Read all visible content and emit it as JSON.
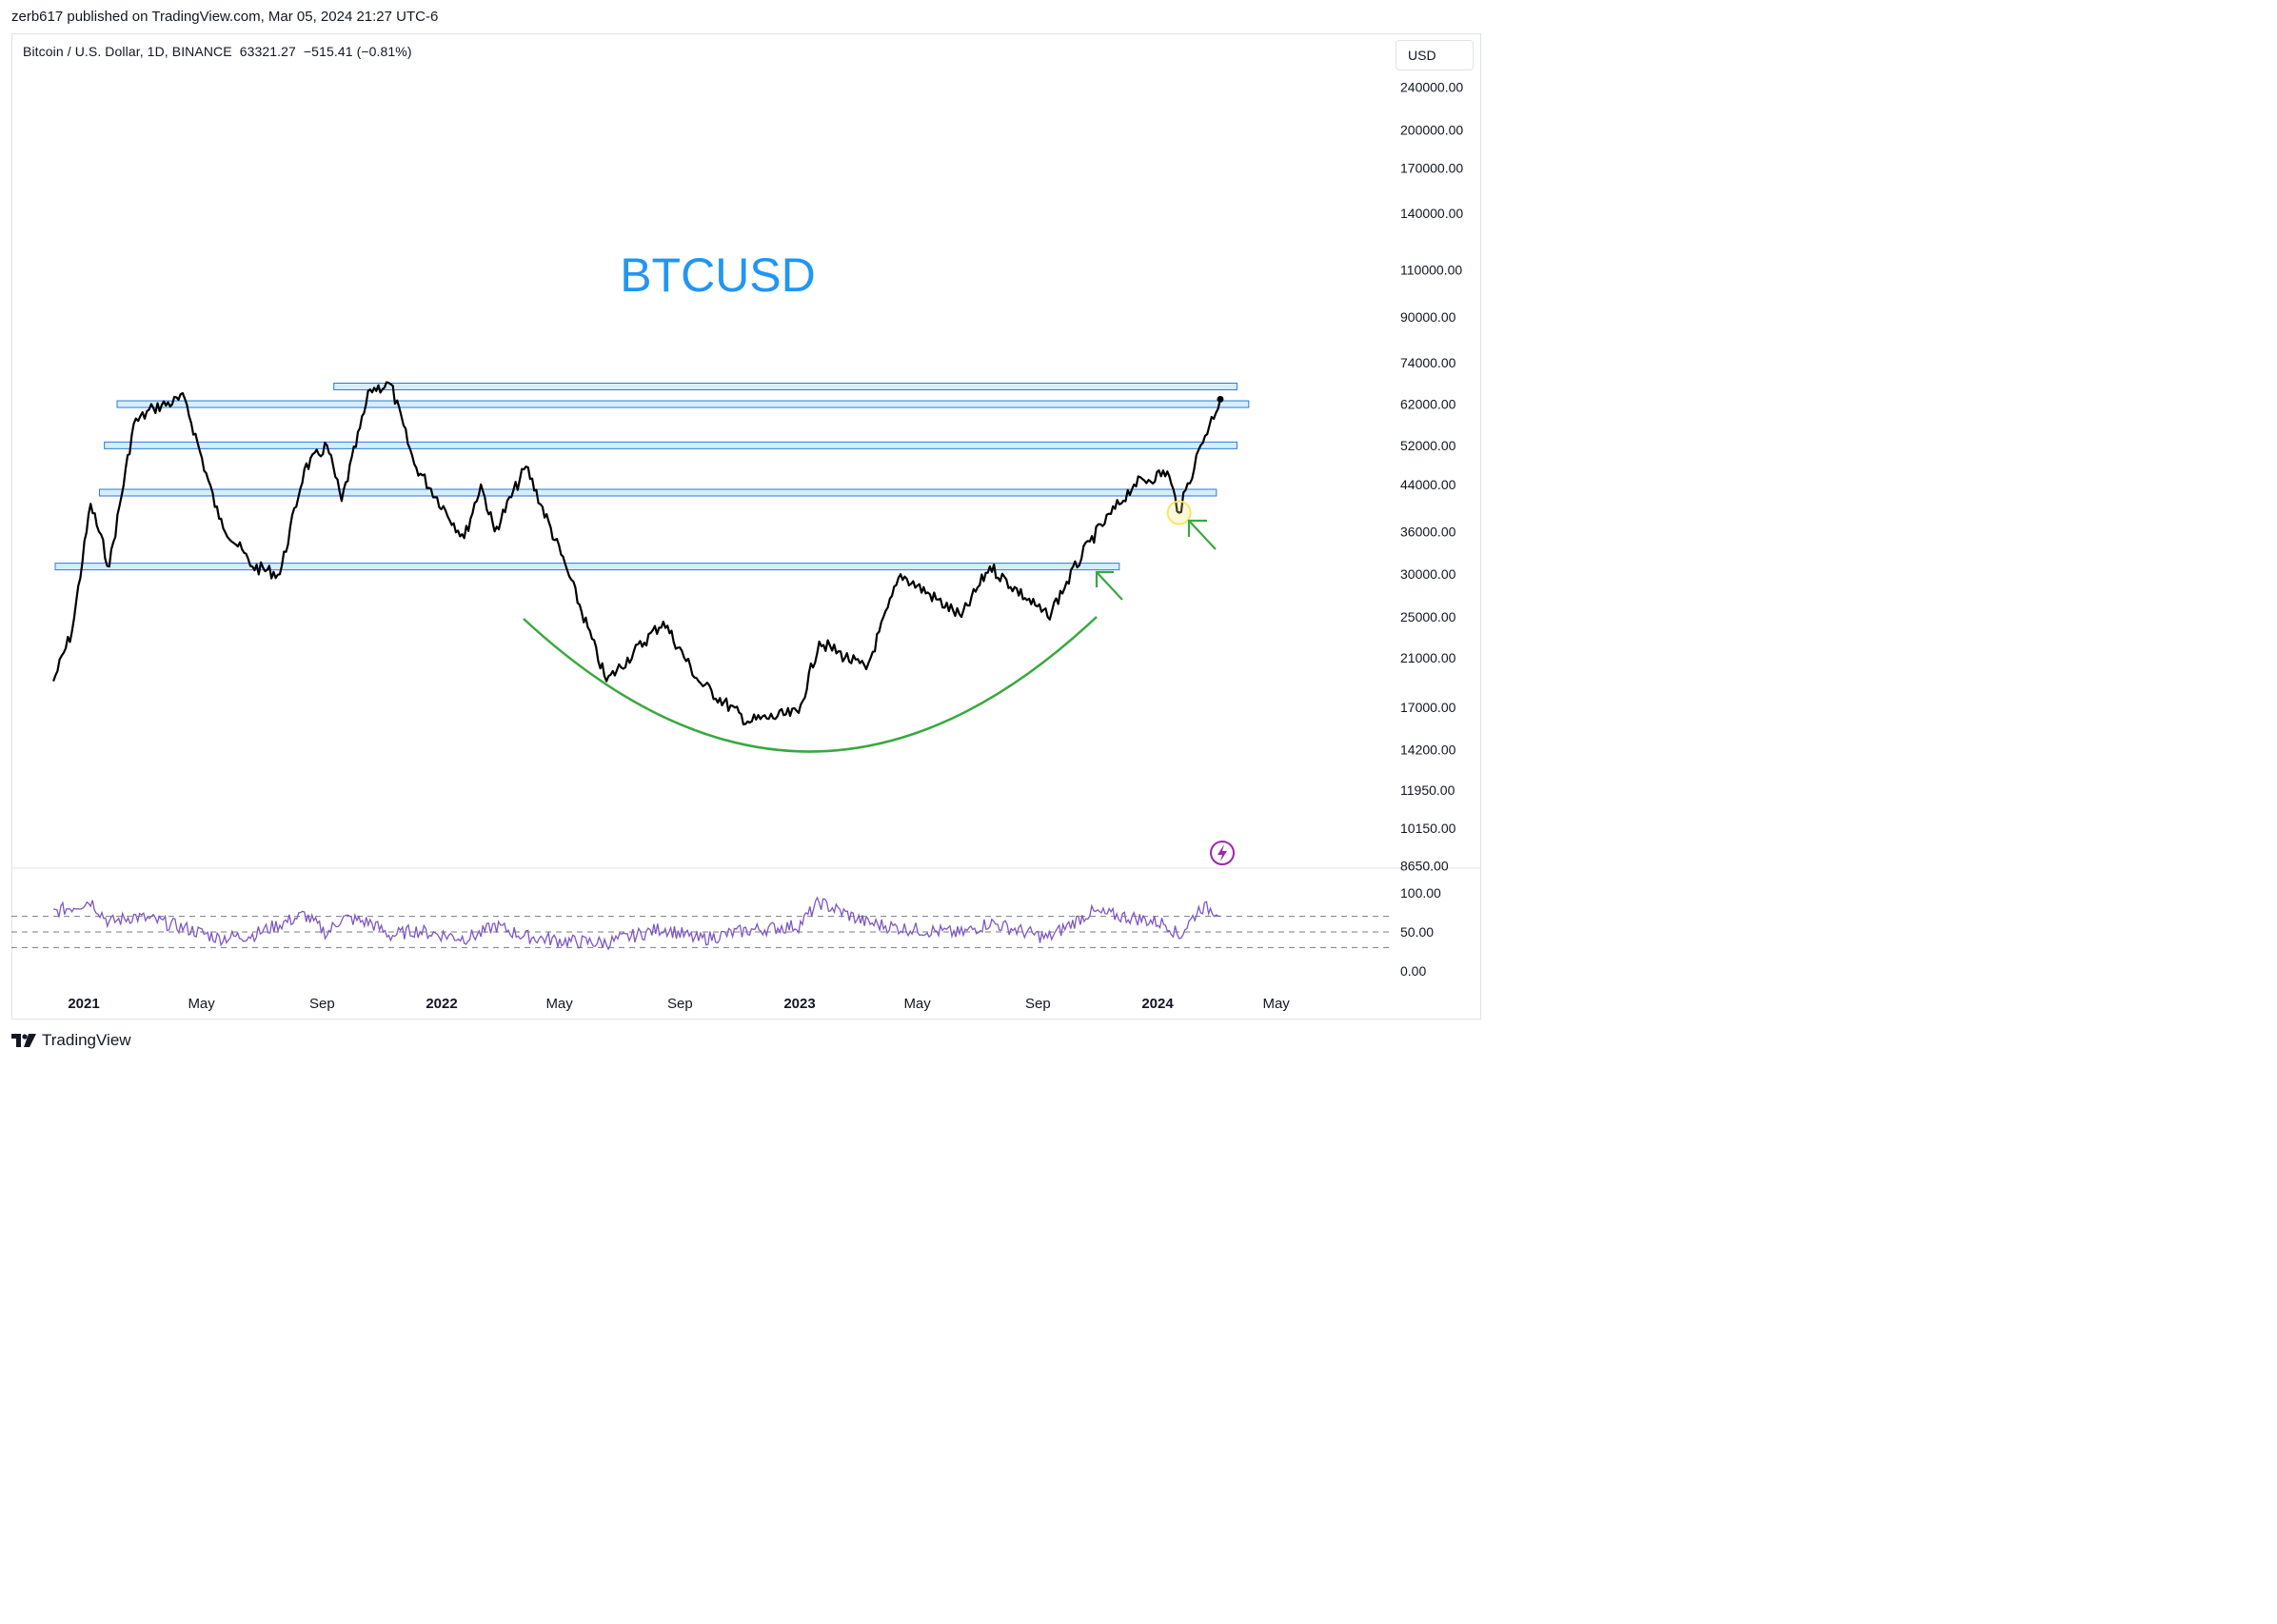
{
  "publish_line": "zerb617 published on TradingView.com, Mar 05, 2024 21:27 UTC-6",
  "header": {
    "symbol": "Bitcoin / U.S. Dollar, 1D, BINANCE",
    "price": "63321.27",
    "change": "−515.41 (−0.81%)",
    "currency_button": "USD"
  },
  "chart_title": "BTCUSD",
  "footer_logo": "TradingView",
  "colors": {
    "title": "#2196f3",
    "price_line": "#000000",
    "zones_fill": "#d6eef9",
    "zones_stroke": "#2d7bd6",
    "curve": "#3aa83f",
    "rsi": "#7e57c2",
    "highlight_circle": "#f5e66a",
    "alert_icon": "#9c27b0"
  },
  "icons": [
    "tradingview-logo-icon",
    "lightning-alert-icon",
    "up-left-arrow-icon"
  ],
  "chart_data": [
    {
      "type": "line",
      "title": "",
      "scale": "log",
      "ylim": [
        8650,
        270000
      ],
      "x_axis_labels": [
        "2021",
        "May",
        "Sep",
        "2022",
        "May",
        "Sep",
        "2023",
        "May",
        "Sep",
        "2024",
        "May"
      ],
      "y_axis_labels": [
        "240000.00",
        "200000.00",
        "170000.00",
        "140000.00",
        "110000.00",
        "90000.00",
        "74000.00",
        "62000.00",
        "52000.00",
        "44000.00",
        "36000.00",
        "30000.00",
        "25000.00",
        "21000.00",
        "17000.00",
        "14200.00",
        "11950.00",
        "10150.00",
        "8650.00"
      ],
      "series": [
        {
          "x": [
            "2020-12-01",
            "2020-12-20",
            "2021-01-08",
            "2021-01-27",
            "2021-02-21",
            "2021-03-13",
            "2021-04-14",
            "2021-05-19",
            "2021-06-22",
            "2021-07-20",
            "2021-08-14",
            "2021-09-06",
            "2021-09-21",
            "2021-10-20",
            "2021-11-10",
            "2021-12-04",
            "2022-01-24",
            "2022-02-10",
            "2022-02-24",
            "2022-03-28",
            "2022-05-09",
            "2022-06-18",
            "2022-08-15",
            "2022-09-20",
            "2022-11-09",
            "2022-12-31",
            "2023-01-21",
            "2023-03-10",
            "2023-04-14",
            "2023-06-15",
            "2023-07-14",
            "2023-09-11",
            "2023-10-24",
            "2023-12-08",
            "2024-01-11",
            "2024-01-23",
            "2024-02-14",
            "2024-03-05"
          ],
          "values": [
            19000,
            23500,
            40500,
            31000,
            57000,
            61000,
            63500,
            38000,
            31000,
            30000,
            47000,
            52000,
            41000,
            66000,
            67500,
            48000,
            35000,
            44000,
            36000,
            47500,
            30500,
            19000,
            24500,
            19000,
            16000,
            16600,
            22500,
            20000,
            30000,
            25000,
            31000,
            25000,
            34500,
            44000,
            46500,
            39000,
            52000,
            63321
          ]
        }
      ],
      "annotations": {
        "price_zones": [
          44000,
          62000,
          52000,
          42500,
          31000
        ],
        "rounded_bottom_curve": true,
        "arrows": 2,
        "highlight_circle": "2024-01-23"
      }
    },
    {
      "type": "line",
      "title": "",
      "series_type": "RSI",
      "ylim": [
        0,
        100
      ],
      "y_axis_labels": [
        "100.00",
        "50.00",
        "0.00"
      ],
      "levels": [
        70,
        50,
        30
      ],
      "series": [
        {
          "values": [
            75,
            82,
            90,
            62,
            70,
            65,
            55,
            42,
            46,
            60,
            72,
            48,
            68,
            62,
            45,
            52,
            42,
            48,
            58,
            44,
            38,
            36,
            55,
            40,
            52,
            58,
            88,
            62,
            55,
            48,
            62,
            42,
            75,
            68,
            60,
            44,
            82,
            76
          ]
        }
      ]
    }
  ]
}
